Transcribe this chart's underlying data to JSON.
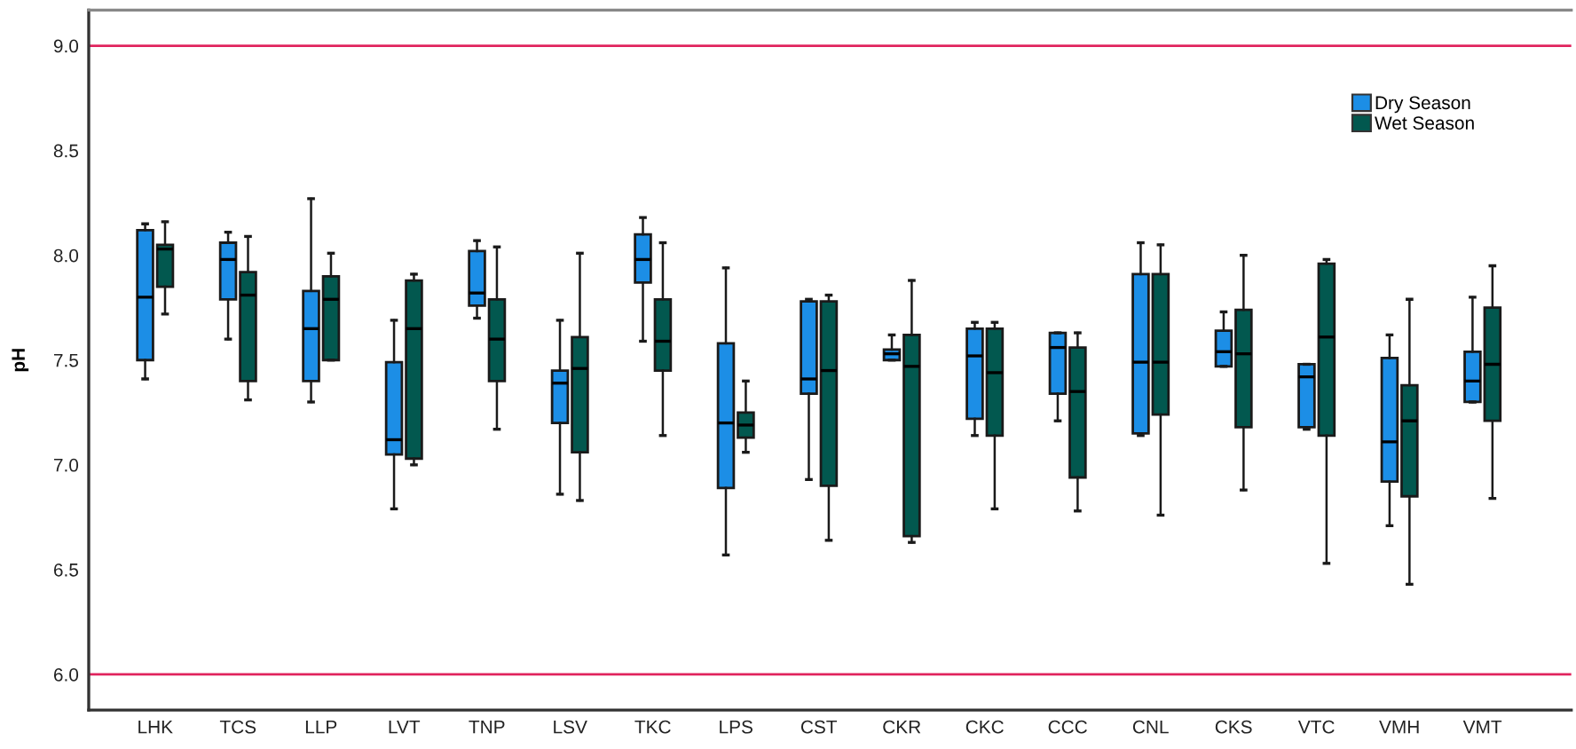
{
  "chart_data": {
    "type": "box",
    "ylabel": "pH",
    "categories": [
      "LHK",
      "TCS",
      "LLP",
      "LVT",
      "TNP",
      "LSV",
      "TKC",
      "LPS",
      "CST",
      "CKR",
      "CKC",
      "CCC",
      "CNL",
      "CKS",
      "VTC",
      "VMH",
      "VMT"
    ],
    "series": [
      {
        "name": "Dry Season",
        "color": "#1c8ee6",
        "boxes": [
          {
            "low": 7.41,
            "q1": 7.5,
            "median": 7.8,
            "q3": 8.12,
            "high": 8.15
          },
          {
            "low": 7.6,
            "q1": 7.79,
            "median": 7.98,
            "q3": 8.06,
            "high": 8.11
          },
          {
            "low": 7.3,
            "q1": 7.4,
            "median": 7.65,
            "q3": 7.83,
            "high": 8.27
          },
          {
            "low": 6.79,
            "q1": 7.05,
            "median": 7.12,
            "q3": 7.49,
            "high": 7.69
          },
          {
            "low": 7.7,
            "q1": 7.76,
            "median": 7.82,
            "q3": 8.02,
            "high": 8.07
          },
          {
            "low": 6.86,
            "q1": 7.2,
            "median": 7.39,
            "q3": 7.45,
            "high": 7.69
          },
          {
            "low": 7.59,
            "q1": 7.87,
            "median": 7.98,
            "q3": 8.1,
            "high": 8.18
          },
          {
            "low": 6.57,
            "q1": 6.89,
            "median": 7.2,
            "q3": 7.58,
            "high": 7.94
          },
          {
            "low": 6.93,
            "q1": 7.34,
            "median": 7.41,
            "q3": 7.78,
            "high": 7.79
          },
          {
            "low": 7.5,
            "q1": 7.5,
            "median": 7.53,
            "q3": 7.55,
            "high": 7.62
          },
          {
            "low": 7.14,
            "q1": 7.22,
            "median": 7.52,
            "q3": 7.65,
            "high": 7.68
          },
          {
            "low": 7.21,
            "q1": 7.34,
            "median": 7.56,
            "q3": 7.63,
            "high": 7.63
          },
          {
            "low": 7.14,
            "q1": 7.15,
            "median": 7.49,
            "q3": 7.91,
            "high": 8.06
          },
          {
            "low": 7.47,
            "q1": 7.47,
            "median": 7.54,
            "q3": 7.64,
            "high": 7.73
          },
          {
            "low": 7.17,
            "q1": 7.18,
            "median": 7.42,
            "q3": 7.48,
            "high": 7.48
          },
          {
            "low": 6.71,
            "q1": 6.92,
            "median": 7.11,
            "q3": 7.51,
            "high": 7.62
          },
          {
            "low": 7.3,
            "q1": 7.3,
            "median": 7.4,
            "q3": 7.54,
            "high": 7.8
          }
        ]
      },
      {
        "name": "Wet Season",
        "color": "#02584f",
        "boxes": [
          {
            "low": 7.72,
            "q1": 7.85,
            "median": 8.03,
            "q3": 8.05,
            "high": 8.16
          },
          {
            "low": 7.31,
            "q1": 7.4,
            "median": 7.81,
            "q3": 7.92,
            "high": 8.09
          },
          {
            "low": 7.5,
            "q1": 7.5,
            "median": 7.79,
            "q3": 7.9,
            "high": 8.01
          },
          {
            "low": 7.0,
            "q1": 7.03,
            "median": 7.65,
            "q3": 7.88,
            "high": 7.91
          },
          {
            "low": 7.17,
            "q1": 7.4,
            "median": 7.6,
            "q3": 7.79,
            "high": 8.04
          },
          {
            "low": 6.83,
            "q1": 7.06,
            "median": 7.46,
            "q3": 7.61,
            "high": 8.01
          },
          {
            "low": 7.14,
            "q1": 7.45,
            "median": 7.59,
            "q3": 7.79,
            "high": 8.06
          },
          {
            "low": 7.06,
            "q1": 7.13,
            "median": 7.19,
            "q3": 7.25,
            "high": 7.4
          },
          {
            "low": 6.64,
            "q1": 6.9,
            "median": 7.45,
            "q3": 7.78,
            "high": 7.81
          },
          {
            "low": 6.63,
            "q1": 6.66,
            "median": 7.47,
            "q3": 7.62,
            "high": 7.88
          },
          {
            "low": 6.79,
            "q1": 7.14,
            "median": 7.44,
            "q3": 7.65,
            "high": 7.68
          },
          {
            "low": 6.78,
            "q1": 6.94,
            "median": 7.35,
            "q3": 7.56,
            "high": 7.63
          },
          {
            "low": 6.76,
            "q1": 7.24,
            "median": 7.49,
            "q3": 7.91,
            "high": 8.05
          },
          {
            "low": 6.88,
            "q1": 7.18,
            "median": 7.53,
            "q3": 7.74,
            "high": 8.0
          },
          {
            "low": 6.53,
            "q1": 7.14,
            "median": 7.61,
            "q3": 7.96,
            "high": 7.98
          },
          {
            "low": 6.43,
            "q1": 6.85,
            "median": 7.21,
            "q3": 7.38,
            "high": 7.79
          },
          {
            "low": 6.84,
            "q1": 7.21,
            "median": 7.48,
            "q3": 7.75,
            "high": 7.95
          }
        ]
      }
    ],
    "ylim": [
      5.83,
      9.17
    ],
    "yticks": [
      {
        "value": 6,
        "label": "6.0"
      },
      {
        "value": 6.5,
        "label": "6.5"
      },
      {
        "value": 7,
        "label": "7.0"
      },
      {
        "value": 7.5,
        "label": "7.5"
      },
      {
        "value": 8,
        "label": "8.0"
      },
      {
        "value": 8.5,
        "label": "8.5"
      },
      {
        "value": 9,
        "label": "9.0"
      }
    ],
    "ref_lines": [
      {
        "axis": "y",
        "value": 6,
        "color": "#e0245e"
      },
      {
        "axis": "y",
        "value": 9,
        "color": "#e0245e"
      }
    ],
    "grid": false,
    "legend": "top right"
  }
}
